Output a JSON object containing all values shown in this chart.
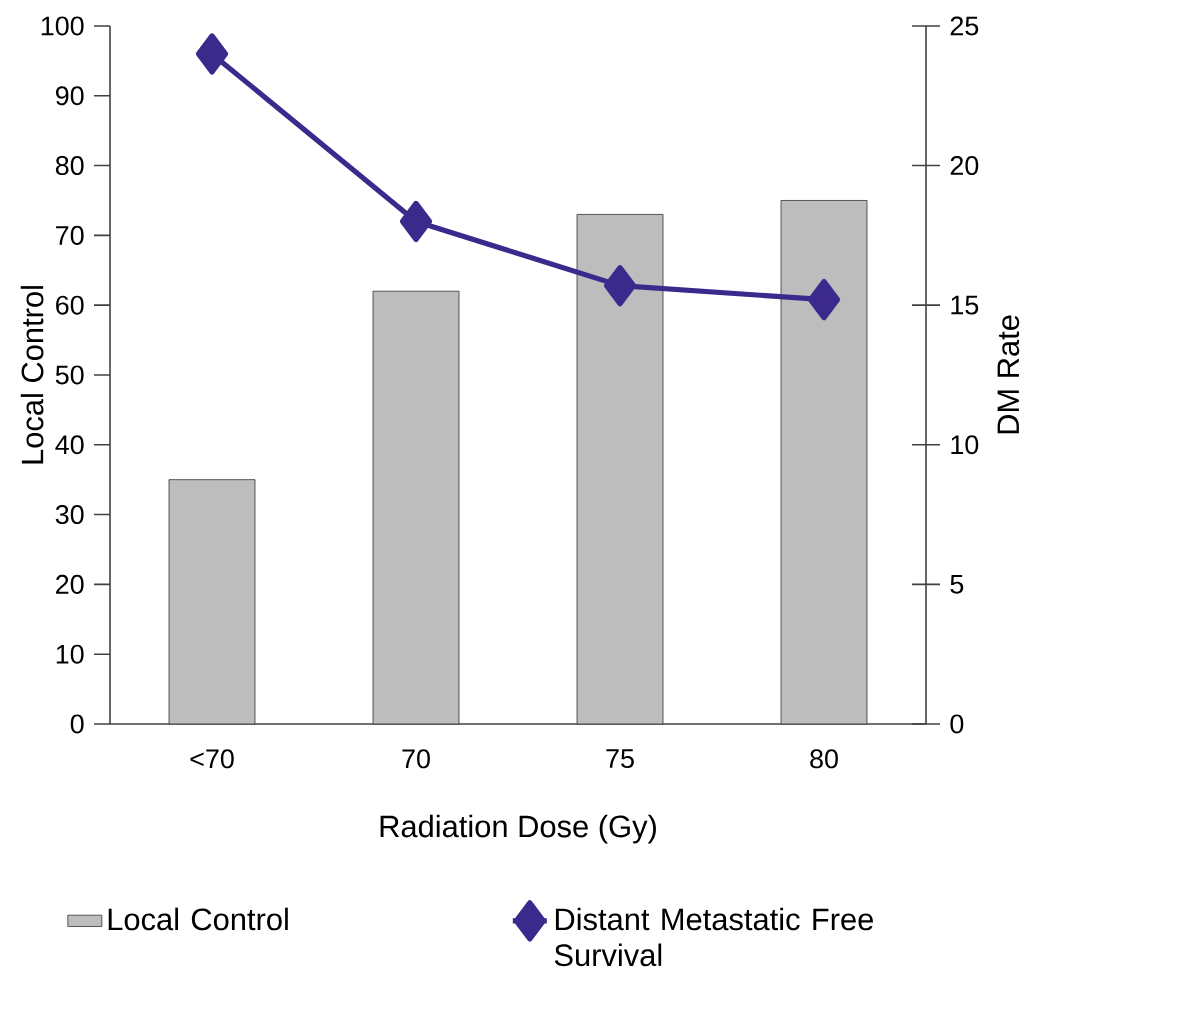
{
  "chart_data": {
    "type": "bar",
    "xlabel": "Radiation Dose (Gy)",
    "ylabel": "Local Control",
    "y2label": "DM Rate",
    "categories": [
      "<70",
      "70",
      "75",
      "80"
    ],
    "series": [
      {
        "name": "Local Control",
        "color": "#bdbdbd",
        "values": [
          35,
          62,
          73,
          75
        ]
      },
      {
        "name": "Distant Metastatic Free Survival",
        "type": "line",
        "axis": "y2",
        "color": "#3b2a8c",
        "values": [
          24,
          18,
          15.7,
          15.2
        ]
      }
    ],
    "ylim": [
      0,
      100
    ],
    "yticks": [
      0,
      10,
      20,
      30,
      40,
      50,
      60,
      70,
      80,
      90,
      100
    ],
    "y2lim": [
      0,
      25
    ],
    "y2ticks": [
      0,
      5,
      10,
      15,
      20,
      25
    ],
    "legend": "bottom",
    "marker": "diamond"
  }
}
